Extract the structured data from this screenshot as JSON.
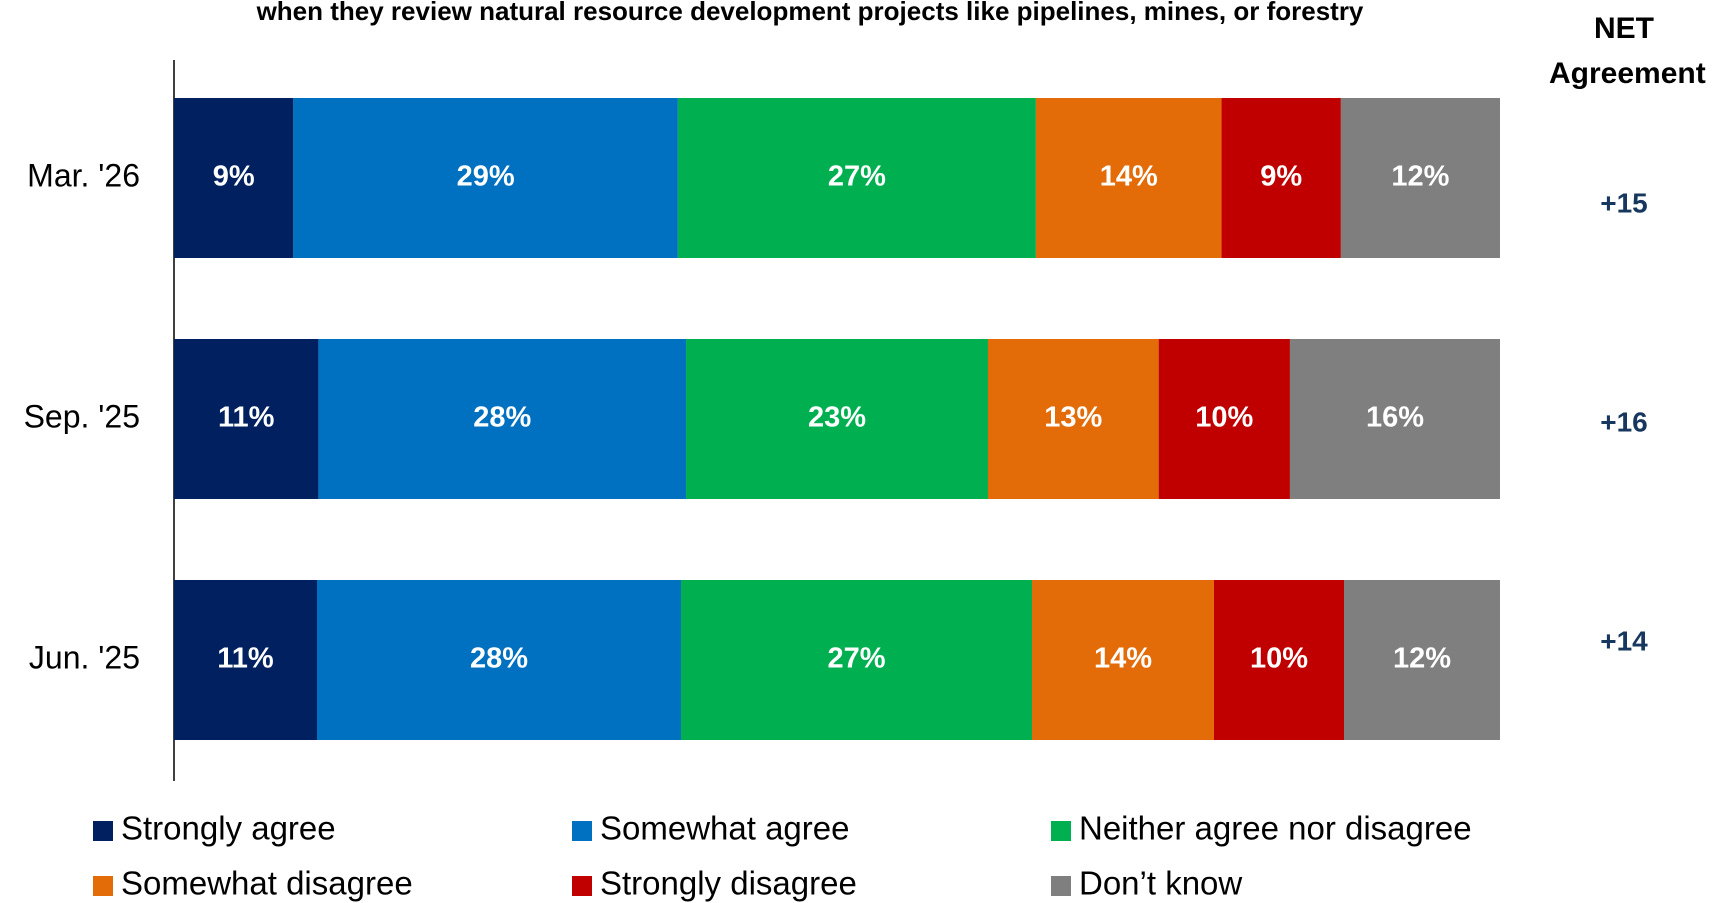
{
  "chart_data": {
    "type": "stacked_bar_horizontal",
    "title": "when they review natural resource development projects like pipelines, mines, or forestry",
    "categories": [
      "Mar. '26",
      "Sep. '25",
      "Jun. '25"
    ],
    "series": [
      {
        "name": "Strongly agree",
        "color": "#002060",
        "values": [
          9,
          11,
          11
        ],
        "value_labels": [
          "9%",
          "11%",
          "11%"
        ]
      },
      {
        "name": "Somewhat agree",
        "color": "#0070c0",
        "values": [
          29,
          28,
          28
        ],
        "value_labels": [
          "29%",
          "28%",
          "28%"
        ]
      },
      {
        "name": "Neither agree nor disagree",
        "color": "#00b050",
        "values": [
          27,
          23,
          27
        ],
        "value_labels": [
          "27%",
          "23%",
          "27%"
        ]
      },
      {
        "name": "Somewhat disagree",
        "color": "#e36c09",
        "values": [
          14,
          13,
          14
        ],
        "value_labels": [
          "14%",
          "13%",
          "14%"
        ]
      },
      {
        "name": "Strongly disagree",
        "color": "#c00000",
        "values": [
          9,
          10,
          10
        ],
        "value_labels": [
          "9%",
          "10%",
          "10%"
        ]
      },
      {
        "name": "Don’t know",
        "color": "#7f7f7f",
        "values": [
          12,
          16,
          12
        ],
        "value_labels": [
          "12%",
          "16%",
          "12%"
        ]
      }
    ],
    "net": {
      "title": "NET Agreement",
      "color": "#17375e",
      "values": [
        15,
        16,
        14
      ],
      "value_labels": [
        "+15",
        "+16",
        "+14"
      ]
    }
  }
}
